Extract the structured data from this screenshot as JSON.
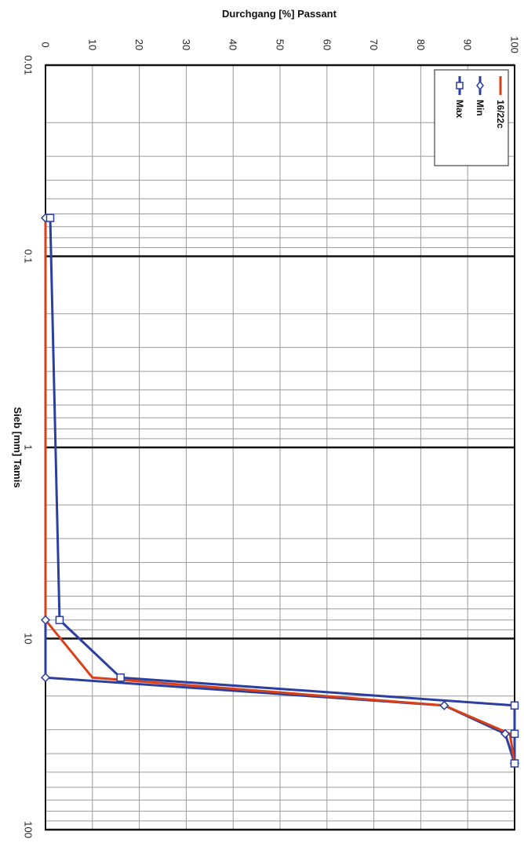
{
  "chart_data": {
    "type": "line",
    "title": "",
    "xlabel": "Sieb [mm] Tamis",
    "ylabel": "Durchgang [%] Passant",
    "x_scale": "log",
    "xlim": [
      0.01,
      100
    ],
    "ylim": [
      0,
      100
    ],
    "x_ticks": [
      "0.01",
      "0.1",
      "1",
      "10",
      "100"
    ],
    "y_ticks": [
      "0",
      "10",
      "20",
      "30",
      "40",
      "50",
      "60",
      "70",
      "80",
      "90",
      "100"
    ],
    "grid": true,
    "legend_position": "top-right",
    "series": [
      {
        "name": "16/22c",
        "color": "#d9401a",
        "marker": "none",
        "x": [
          0.063,
          8,
          16,
          22.4,
          31.5,
          45
        ],
        "y": [
          0,
          0,
          10,
          85,
          99,
          100
        ]
      },
      {
        "name": "Min",
        "color": "#2a3f9f",
        "marker": "diamond",
        "x": [
          0.063,
          8,
          16,
          22.4,
          31.5,
          45
        ],
        "y": [
          0,
          0,
          0,
          85,
          98,
          100
        ]
      },
      {
        "name": "Max",
        "color": "#2a3f9f",
        "marker": "square",
        "x": [
          0.063,
          8,
          16,
          22.4,
          31.5,
          45
        ],
        "y": [
          1,
          3,
          16,
          100,
          100,
          100
        ]
      }
    ]
  }
}
